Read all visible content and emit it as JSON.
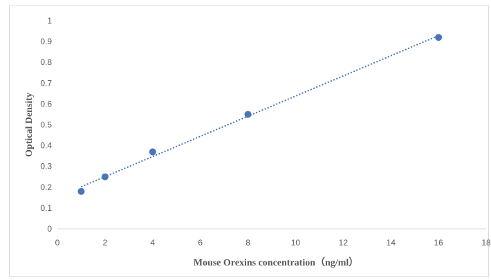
{
  "chart_data": {
    "type": "scatter",
    "xlabel": "Mouse Orexins concentration（ng/ml）",
    "ylabel": "Optical Density",
    "xlim": [
      0,
      18
    ],
    "ylim": [
      0,
      1
    ],
    "x_ticks": [
      0,
      2,
      4,
      6,
      8,
      10,
      12,
      14,
      16,
      18
    ],
    "y_ticks": [
      0,
      0.1,
      0.2,
      0.3,
      0.4,
      0.5,
      0.6,
      0.7,
      0.8,
      0.9,
      1
    ],
    "grid": false,
    "series": [
      {
        "points": [
          {
            "x": 1,
            "y": 0.18
          },
          {
            "x": 2,
            "y": 0.25
          },
          {
            "x": 4,
            "y": 0.37
          },
          {
            "x": 8,
            "y": 0.55
          },
          {
            "x": 16,
            "y": 0.92
          }
        ],
        "color": "#4a76b8",
        "trendline": {
          "type": "linear",
          "style": "dotted",
          "x_range": [
            1,
            16
          ]
        }
      }
    ]
  }
}
